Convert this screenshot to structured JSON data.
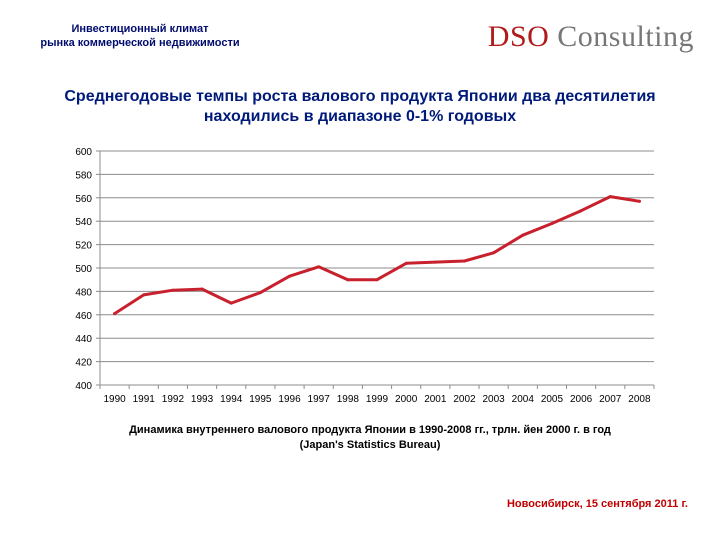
{
  "header": {
    "subtitle_line1": "Инвестиционный климат",
    "subtitle_line2": "рынка коммерческой недвижимости",
    "logo_part1": "DSO",
    "logo_part2": "Consulting"
  },
  "slide": {
    "title_line1": "Среднегодовые темпы роста валового продукта Японии два десятилетия",
    "title_line2": "находились в диапазоне 0-1% годовых",
    "caption_line1": "Динамика внутреннего валового продукта Японии в 1990-2008 гг., трлн. йен 2000 г. в год",
    "caption_line2": "(Japan's Statistics Bureau)",
    "footer": "Новосибирск, 15 сентября 2011 г."
  },
  "colors": {
    "line": "#c8202c",
    "title": "#001a7a",
    "footer": "#c00000"
  },
  "chart_data": {
    "type": "line",
    "title": "",
    "xlabel": "",
    "ylabel": "",
    "x": [
      "1990",
      "1991",
      "1992",
      "1993",
      "1994",
      "1995",
      "1996",
      "1997",
      "1998",
      "1999",
      "2000",
      "2001",
      "2002",
      "2003",
      "2004",
      "2005",
      "2006",
      "2007",
      "2008"
    ],
    "values": [
      461,
      477,
      481,
      482,
      470,
      479,
      493,
      501,
      490,
      490,
      504,
      505,
      506,
      513,
      528,
      538,
      549,
      561,
      557
    ],
    "ylim": [
      400,
      600
    ],
    "yticks": [
      "400",
      "420",
      "440",
      "460",
      "480",
      "500",
      "520",
      "540",
      "560",
      "580",
      "600"
    ],
    "grid": true,
    "legend": "none"
  }
}
